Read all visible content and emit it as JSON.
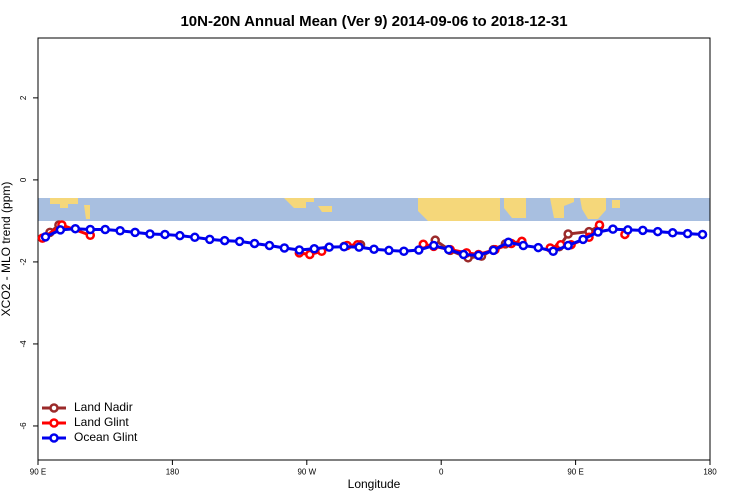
{
  "chart_data": {
    "type": "line",
    "title": "10N-20N Annual Mean (Ver 9)   2014-09-06 to 2018-12-31",
    "x_label": "Longitude",
    "y_label": "XCO2 - MLO trend (ppm)",
    "xlim": [
      90,
      540
    ],
    "ylim": [
      -6.83,
      3.46
    ],
    "xticks": [
      {
        "value": 90,
        "label": "90 E"
      },
      180,
      {
        "value": 270,
        "label": "90 W"
      },
      {
        "value": 360,
        "label": "0"
      },
      {
        "value": 450,
        "label": "90 E"
      },
      {
        "value": 540,
        "label": "180"
      }
    ],
    "yticks": [
      -6,
      -4,
      -2,
      0,
      2
    ],
    "legend": "bottom-left",
    "series": [
      {
        "name": "Land Nadir",
        "color": "#9b2a2a",
        "x": [
          98,
          104,
          null,
          295,
          306,
          null,
          356,
          366,
          378,
          387,
          395,
          403,
          414,
          null,
          439,
          445,
          459,
          466
        ],
        "values": [
          -1.28,
          -1.1,
          null,
          -1.62,
          -1.58,
          null,
          -1.47,
          -1.72,
          -1.9,
          -1.86,
          -1.7,
          -1.56,
          -1.5,
          null,
          -1.63,
          -1.32,
          -1.26,
          -1.12
        ]
      },
      {
        "name": "Land Glint",
        "color": "#ff0000",
        "x": [
          93,
          106,
          125,
          null,
          265,
          272,
          280,
          null,
          297,
          304,
          null,
          348,
          355,
          366,
          377,
          385,
          396,
          407,
          414,
          null,
          433,
          440,
          447,
          459,
          466,
          null,
          483
        ],
        "values": [
          -1.42,
          -1.1,
          -1.35,
          null,
          -1.78,
          -1.82,
          -1.74,
          null,
          -1.6,
          -1.58,
          null,
          -1.57,
          -1.62,
          -1.7,
          -1.78,
          -1.82,
          -1.7,
          -1.55,
          -1.5,
          null,
          -1.66,
          -1.58,
          -1.58,
          -1.4,
          -1.1,
          null,
          -1.33
        ]
      },
      {
        "name": "Ocean Glint",
        "color": "#0000ee",
        "x": [
          95,
          105,
          115,
          125,
          135,
          145,
          155,
          165,
          175,
          185,
          195,
          205,
          215,
          225,
          235,
          245,
          255,
          265,
          275,
          285,
          295,
          305,
          315,
          325,
          335,
          345,
          355,
          365,
          375,
          385,
          395,
          405,
          415,
          425,
          435,
          445,
          455,
          465,
          475,
          485,
          495,
          505,
          515,
          525,
          535
        ],
        "values": [
          -1.39,
          -1.22,
          -1.19,
          -1.21,
          -1.21,
          -1.24,
          -1.28,
          -1.32,
          -1.33,
          -1.36,
          -1.4,
          -1.45,
          -1.48,
          -1.5,
          -1.55,
          -1.6,
          -1.66,
          -1.71,
          -1.68,
          -1.64,
          -1.63,
          -1.64,
          -1.69,
          -1.72,
          -1.74,
          -1.71,
          -1.6,
          -1.7,
          -1.82,
          -1.84,
          -1.72,
          -1.52,
          -1.6,
          -1.65,
          -1.74,
          -1.6,
          -1.45,
          -1.27,
          -1.2,
          -1.22,
          -1.23,
          -1.26,
          -1.29,
          -1.31,
          -1.33
        ]
      }
    ]
  }
}
